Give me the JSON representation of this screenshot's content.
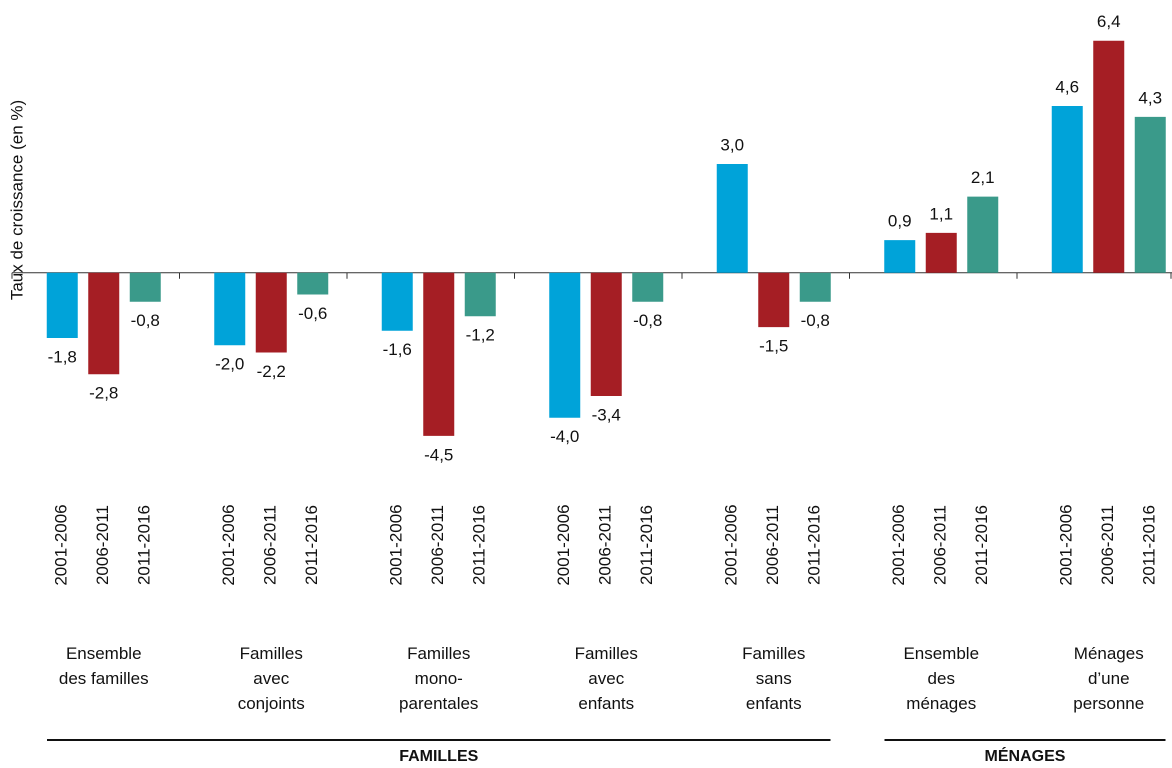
{
  "chart_data": {
    "type": "bar",
    "y_label": "Taux de croissance (en %)",
    "categories": [
      "Ensemble\ndes familles",
      "Familles\navec\nconjoints",
      "Familles\nmono-\nparentales",
      "Familles\navec\nenfants",
      "Familles\nsans\nenfants",
      "Ensemble\ndes\nménages",
      "Ménages\nd’une\npersonne"
    ],
    "series": [
      {
        "name": "2001-2006",
        "color": "#00a3d9",
        "values": [
          -1.8,
          -2.0,
          -1.6,
          -4.0,
          3.0,
          0.9,
          4.6
        ],
        "value_labels": [
          "-1,8",
          "-2,0",
          "-1,6",
          "-4,0",
          "3,0",
          "0,9",
          "4,6"
        ]
      },
      {
        "name": "2006-2011",
        "color": "#a51e24",
        "values": [
          -2.8,
          -2.2,
          -4.5,
          -3.4,
          -1.5,
          1.1,
          6.4
        ],
        "value_labels": [
          "-2,8",
          "-2,2",
          "-4,5",
          "-3,4",
          "-1,5",
          "1,1",
          "6,4"
        ]
      },
      {
        "name": "2011-2016",
        "color": "#3a9a8a",
        "values": [
          -0.8,
          -0.6,
          -1.2,
          -0.8,
          -0.8,
          2.1,
          4.3
        ],
        "value_labels": [
          "-0,8",
          "-0,6",
          "-1,2",
          "-0,8",
          "-0,8",
          "2,1",
          "4,3"
        ]
      }
    ],
    "groups": [
      {
        "label": "FAMILLES",
        "count": 5
      },
      {
        "label": "MÉNAGES",
        "count": 2
      }
    ],
    "ylim": [
      -5,
      7
    ]
  }
}
